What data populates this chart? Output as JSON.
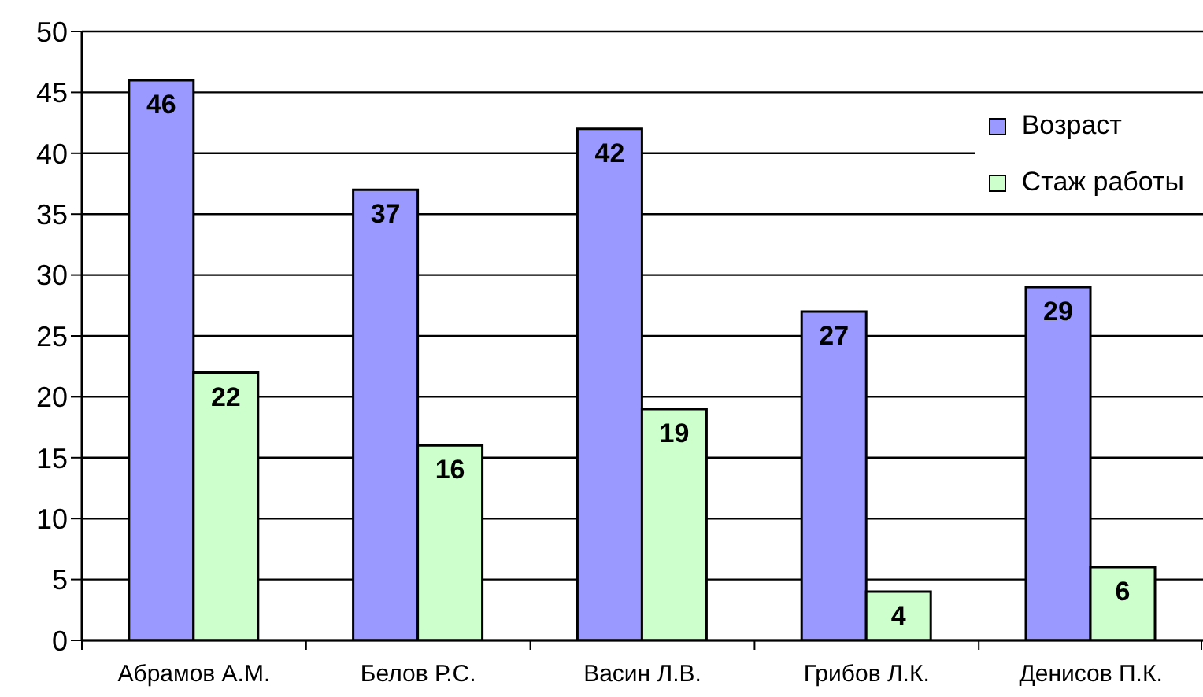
{
  "chart_data": {
    "type": "bar",
    "categories": [
      "Абрамов А.М.",
      "Белов Р.С.",
      "Васин Л.В.",
      "Грибов Л.К.",
      "Денисов П.К."
    ],
    "series": [
      {
        "name": "Возраст",
        "color": "#9999ff",
        "values": [
          46,
          37,
          42,
          27,
          29
        ]
      },
      {
        "name": "Стаж работы",
        "color": "#ccffcc",
        "values": [
          22,
          16,
          19,
          4,
          6
        ]
      }
    ],
    "ylim": [
      0,
      50
    ],
    "yticks": [
      0,
      5,
      10,
      15,
      20,
      25,
      30,
      35,
      40,
      45,
      50
    ],
    "grid": "y",
    "legend": "top right",
    "data_labels": true
  }
}
